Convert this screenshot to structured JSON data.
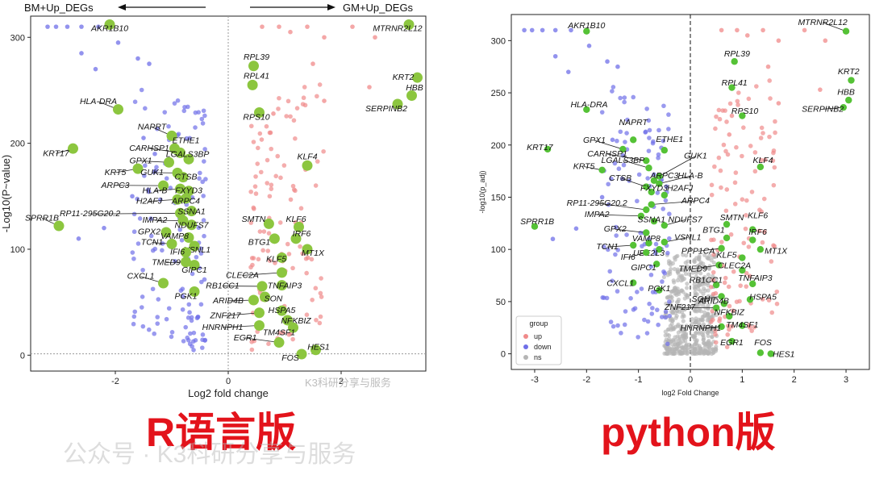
{
  "captions": {
    "left": "R语言版",
    "right": "python版"
  },
  "watermarks": {
    "small": "K3科研分享与服务",
    "big": "公众号 · K3科研分享与服务"
  },
  "chart_data": [
    {
      "type": "scatter",
      "panel": "left",
      "title": "",
      "header_left": "BM+Up_DEGs",
      "header_right": "GM+Up_DEGs",
      "xlabel": "Log2 fold change",
      "ylabel": "-Log10(P~value)",
      "xlim": [
        -3.5,
        3.5
      ],
      "ylim": [
        -15,
        320
      ],
      "xticks": [
        -2,
        0,
        2
      ],
      "yticks": [
        0,
        100,
        200,
        300
      ],
      "grid": false,
      "colors": {
        "up": "#f08a8a",
        "down": "#6f6fe8",
        "highlight": "#8cc63f"
      },
      "labels": [
        {
          "g": "AKR1B10",
          "x": -2.1,
          "y": 312,
          "lx": -2.1,
          "ly": 306
        },
        {
          "g": "MTRNR2L12",
          "x": 3.2,
          "y": 312,
          "lx": 3.0,
          "ly": 306
        },
        {
          "g": "RPL39",
          "x": 0.45,
          "y": 273,
          "lx": 0.5,
          "ly": 279
        },
        {
          "g": "RPL41",
          "x": 0.43,
          "y": 255,
          "lx": 0.5,
          "ly": 261
        },
        {
          "g": "KRT2",
          "x": 3.35,
          "y": 262,
          "lx": 3.1,
          "ly": 260
        },
        {
          "g": "HBB",
          "x": 3.25,
          "y": 245,
          "lx": 3.3,
          "ly": 250
        },
        {
          "g": "SERPINB2",
          "x": 3.0,
          "y": 237,
          "lx": 2.8,
          "ly": 230
        },
        {
          "g": "HLA-DRA",
          "x": -1.95,
          "y": 232,
          "lx": -2.3,
          "ly": 237
        },
        {
          "g": "RPS10",
          "x": 0.55,
          "y": 229,
          "lx": 0.5,
          "ly": 222
        },
        {
          "g": "NAPRT",
          "x": -1.0,
          "y": 207,
          "lx": -1.35,
          "ly": 213
        },
        {
          "g": "ETHE1",
          "x": -0.95,
          "y": 195,
          "lx": -0.75,
          "ly": 200
        },
        {
          "g": "KRT17",
          "x": -2.75,
          "y": 195,
          "lx": -3.05,
          "ly": 188
        },
        {
          "g": "CARHSP1",
          "x": -0.85,
          "y": 191,
          "lx": -1.4,
          "ly": 193
        },
        {
          "g": "LGALS3BP",
          "x": -0.7,
          "y": 185,
          "lx": -0.72,
          "ly": 187
        },
        {
          "g": "GPX1",
          "x": -1.05,
          "y": 182,
          "lx": -1.55,
          "ly": 181
        },
        {
          "g": "KLF4",
          "x": 1.4,
          "y": 179,
          "lx": 1.4,
          "ly": 185
        },
        {
          "g": "KRT5",
          "x": -1.6,
          "y": 176,
          "lx": -2.0,
          "ly": 170
        },
        {
          "g": "GUK1",
          "x": -0.9,
          "y": 172,
          "lx": -1.35,
          "ly": 170
        },
        {
          "g": "CTSB",
          "x": -0.8,
          "y": 168,
          "lx": -0.75,
          "ly": 166
        },
        {
          "g": "ARPC3",
          "x": -1.15,
          "y": 160,
          "lx": -2.0,
          "ly": 158
        },
        {
          "g": "HLA-B",
          "x": -0.85,
          "y": 157,
          "lx": -1.3,
          "ly": 153
        },
        {
          "g": "FXYD3",
          "x": -0.7,
          "y": 155,
          "lx": -0.7,
          "ly": 153
        },
        {
          "g": "H2AFJ",
          "x": -0.9,
          "y": 147,
          "lx": -1.4,
          "ly": 143
        },
        {
          "g": "ARPC4",
          "x": -0.75,
          "y": 148,
          "lx": -0.75,
          "ly": 143
        },
        {
          "g": "RP11-295G20.2",
          "x": -0.85,
          "y": 134,
          "lx": -2.45,
          "ly": 131
        },
        {
          "g": "SSNA1",
          "x": -0.65,
          "y": 136,
          "lx": -0.65,
          "ly": 133
        },
        {
          "g": "IMPA2",
          "x": -0.8,
          "y": 127,
          "lx": -1.3,
          "ly": 125
        },
        {
          "g": "NDUFS7",
          "x": -0.65,
          "y": 123,
          "lx": -0.65,
          "ly": 120
        },
        {
          "g": "SMTN",
          "x": 0.72,
          "y": 124,
          "lx": 0.45,
          "ly": 126
        },
        {
          "g": "KLF6",
          "x": 1.25,
          "y": 121,
          "lx": 1.2,
          "ly": 126
        },
        {
          "g": "GPX2",
          "x": -1.1,
          "y": 116,
          "lx": -1.4,
          "ly": 114
        },
        {
          "g": "IRF6",
          "x": 1.2,
          "y": 110,
          "lx": 1.3,
          "ly": 112
        },
        {
          "g": "BTG1",
          "x": 0.82,
          "y": 110,
          "lx": 0.55,
          "ly": 104
        },
        {
          "g": "VAMP8",
          "x": -0.7,
          "y": 111,
          "lx": -0.95,
          "ly": 110
        },
        {
          "g": "TCN1",
          "x": -1.0,
          "y": 105,
          "lx": -1.35,
          "ly": 104
        },
        {
          "g": "VSNL1",
          "x": -0.6,
          "y": 103,
          "lx": -0.55,
          "ly": 97
        },
        {
          "g": "IFI6",
          "x": -0.75,
          "y": 97,
          "lx": -0.9,
          "ly": 95
        },
        {
          "g": "MT1X",
          "x": 1.4,
          "y": 100,
          "lx": 1.5,
          "ly": 94
        },
        {
          "g": "KLF5",
          "x": 0.95,
          "y": 92,
          "lx": 0.85,
          "ly": 88
        },
        {
          "g": "TMED9",
          "x": -0.75,
          "y": 88,
          "lx": -1.1,
          "ly": 85
        },
        {
          "g": "GIPC1",
          "x": -0.6,
          "y": 85,
          "lx": -0.6,
          "ly": 78
        },
        {
          "g": "CLEC2A",
          "x": 0.95,
          "y": 78,
          "lx": 0.25,
          "ly": 73
        },
        {
          "g": "CXCL1",
          "x": -1.15,
          "y": 68,
          "lx": -1.55,
          "ly": 72
        },
        {
          "g": "RB1CC1",
          "x": 0.6,
          "y": 65,
          "lx": -0.1,
          "ly": 63
        },
        {
          "g": "TNFAIP3",
          "x": 0.95,
          "y": 66,
          "lx": 1.0,
          "ly": 63
        },
        {
          "g": "PGK1",
          "x": -0.6,
          "y": 60,
          "lx": -0.75,
          "ly": 53
        },
        {
          "g": "SON",
          "x": 0.65,
          "y": 55,
          "lx": 0.8,
          "ly": 51
        },
        {
          "g": "ARID4B",
          "x": 0.45,
          "y": 52,
          "lx": 0.0,
          "ly": 49
        },
        {
          "g": "HSPA5",
          "x": 0.95,
          "y": 42,
          "lx": 0.95,
          "ly": 40
        },
        {
          "g": "ZNF217",
          "x": 0.55,
          "y": 40,
          "lx": -0.05,
          "ly": 35
        },
        {
          "g": "NFKBIZ",
          "x": 1.05,
          "y": 33,
          "lx": 1.2,
          "ly": 30
        },
        {
          "g": "HNRNPH1",
          "x": 0.55,
          "y": 28,
          "lx": -0.1,
          "ly": 24
        },
        {
          "g": "TM4SF1",
          "x": 1.15,
          "y": 26,
          "lx": 0.9,
          "ly": 19
        },
        {
          "g": "EGR1",
          "x": 0.9,
          "y": 12,
          "lx": 0.3,
          "ly": 14
        },
        {
          "g": "HES1",
          "x": 1.55,
          "y": 5,
          "lx": 1.6,
          "ly": 5
        },
        {
          "g": "FOS",
          "x": 1.3,
          "y": 1,
          "lx": 1.1,
          "ly": -5
        },
        {
          "g": "SPRR1B",
          "x": -3.0,
          "y": 122,
          "lx": -3.3,
          "ly": 127
        }
      ]
    },
    {
      "type": "scatter",
      "panel": "right",
      "title": "",
      "xlabel": "log2 Fold Change",
      "ylabel": "-log10(p_adj)",
      "xlim": [
        -3.45,
        3.45
      ],
      "ylim": [
        -15,
        325
      ],
      "xticks": [
        -3,
        -2,
        -1,
        0,
        1,
        2,
        3
      ],
      "yticks": [
        0,
        50,
        100,
        150,
        200,
        250,
        300
      ],
      "grid": false,
      "legend": {
        "title": "group",
        "position": "bottom-left",
        "entries": [
          {
            "name": "up",
            "color": "#f08a8a"
          },
          {
            "name": "down",
            "color": "#6f6fe8"
          },
          {
            "name": "ns",
            "color": "#b5b5b5"
          }
        ]
      },
      "colors": {
        "up": "#f08a8a",
        "down": "#6f6fe8",
        "ns": "#b5b5b5",
        "highlight": "#55c236"
      },
      "labels": [
        {
          "g": "AKR1B10",
          "x": -2.0,
          "y": 309,
          "lx": -2.0,
          "ly": 312
        },
        {
          "g": "MTRNR2L12",
          "x": 3.0,
          "y": 309,
          "lx": 2.55,
          "ly": 315
        },
        {
          "g": "RPL39",
          "x": 0.85,
          "y": 280,
          "lx": 0.9,
          "ly": 285
        },
        {
          "g": "KRT2",
          "x": 3.1,
          "y": 262,
          "lx": 3.05,
          "ly": 268
        },
        {
          "g": "RPL41",
          "x": 0.8,
          "y": 255,
          "lx": 0.85,
          "ly": 257
        },
        {
          "g": "HBB",
          "x": 3.05,
          "y": 243,
          "lx": 3.0,
          "ly": 248
        },
        {
          "g": "SERPINB2",
          "x": 2.95,
          "y": 236,
          "lx": 2.55,
          "ly": 232
        },
        {
          "g": "HLA-DRA",
          "x": -2.0,
          "y": 234,
          "lx": -1.95,
          "ly": 236
        },
        {
          "g": "RPS10",
          "x": 1.0,
          "y": 228,
          "lx": 1.05,
          "ly": 230
        },
        {
          "g": "NAPRT",
          "x": -1.1,
          "y": 205,
          "lx": -1.1,
          "ly": 219
        },
        {
          "g": "GPX1",
          "x": -1.3,
          "y": 196,
          "lx": -1.85,
          "ly": 202
        },
        {
          "g": "ETHE1",
          "x": -0.5,
          "y": 195,
          "lx": -0.4,
          "ly": 203
        },
        {
          "g": "KRT17",
          "x": -2.75,
          "y": 196,
          "lx": -2.9,
          "ly": 195
        },
        {
          "g": "CARHSP1",
          "x": -0.85,
          "y": 185,
          "lx": -1.6,
          "ly": 189
        },
        {
          "g": "LGALS3BP",
          "x": -0.8,
          "y": 178,
          "lx": -1.3,
          "ly": 183
        },
        {
          "g": "GUK1",
          "x": -0.6,
          "y": 170,
          "lx": 0.1,
          "ly": 187
        },
        {
          "g": "KLF4",
          "x": 1.35,
          "y": 179,
          "lx": 1.4,
          "ly": 183
        },
        {
          "g": "KRT5",
          "x": -1.7,
          "y": 176,
          "lx": -2.05,
          "ly": 177
        },
        {
          "g": "ARPC3",
          "x": -0.7,
          "y": 166,
          "lx": -0.5,
          "ly": 168
        },
        {
          "g": "HLA-B",
          "x": -0.6,
          "y": 163,
          "lx": 0.0,
          "ly": 168
        },
        {
          "g": "CTSB",
          "x": -0.85,
          "y": 160,
          "lx": -1.35,
          "ly": 166
        },
        {
          "g": "FXYD3",
          "x": -0.75,
          "y": 155,
          "lx": -0.7,
          "ly": 156
        },
        {
          "g": "H2AFJ",
          "x": -0.5,
          "y": 152,
          "lx": -0.2,
          "ly": 156
        },
        {
          "g": "ARPC4",
          "x": -0.75,
          "y": 143,
          "lx": 0.1,
          "ly": 144
        },
        {
          "g": "RP11-295G20.2",
          "x": -0.85,
          "y": 138,
          "lx": -1.8,
          "ly": 142
        },
        {
          "g": "IMPA2",
          "x": -0.95,
          "y": 132,
          "lx": -1.8,
          "ly": 131
        },
        {
          "g": "SSNA1",
          "x": -0.7,
          "y": 127,
          "lx": -0.75,
          "ly": 126
        },
        {
          "g": "NDUFS7",
          "x": -0.5,
          "y": 123,
          "lx": -0.1,
          "ly": 126
        },
        {
          "g": "SMTN",
          "x": 0.7,
          "y": 124,
          "lx": 0.8,
          "ly": 128
        },
        {
          "g": "KLF6",
          "x": 1.2,
          "y": 119,
          "lx": 1.3,
          "ly": 130
        },
        {
          "g": "SPRR1B",
          "x": -3.0,
          "y": 122,
          "lx": -2.95,
          "ly": 124
        },
        {
          "g": "GPX2",
          "x": -0.85,
          "y": 116,
          "lx": -1.45,
          "ly": 117
        },
        {
          "g": "BTG1",
          "x": 0.7,
          "y": 111,
          "lx": 0.45,
          "ly": 116
        },
        {
          "g": "IRF6",
          "x": 1.2,
          "y": 109,
          "lx": 1.3,
          "ly": 114
        },
        {
          "g": "VSNL1",
          "x": -0.5,
          "y": 107,
          "lx": -0.05,
          "ly": 109
        },
        {
          "g": "VAMP8",
          "x": -0.8,
          "y": 106,
          "lx": -0.85,
          "ly": 108
        },
        {
          "g": "TCN1",
          "x": -1.1,
          "y": 104,
          "lx": -1.6,
          "ly": 100
        },
        {
          "g": "UBE2L3",
          "x": -0.6,
          "y": 100,
          "lx": -0.8,
          "ly": 94
        },
        {
          "g": "PPP1CA",
          "x": 0.6,
          "y": 101,
          "lx": 0.15,
          "ly": 96
        },
        {
          "g": "MT1X",
          "x": 1.35,
          "y": 100,
          "lx": 1.65,
          "ly": 96
        },
        {
          "g": "IFI6",
          "x": -0.85,
          "y": 97,
          "lx": -1.2,
          "ly": 90
        },
        {
          "g": "KLF5",
          "x": 1.0,
          "y": 92,
          "lx": 0.7,
          "ly": 92
        },
        {
          "g": "GIPC1",
          "x": -0.65,
          "y": 86,
          "lx": -0.9,
          "ly": 80
        },
        {
          "g": "TMED9",
          "x": 0.55,
          "y": 85,
          "lx": 0.05,
          "ly": 79
        },
        {
          "g": "CLEC2A",
          "x": 1.0,
          "y": 80,
          "lx": 0.85,
          "ly": 82
        },
        {
          "g": "CXCL1",
          "x": -1.1,
          "y": 68,
          "lx": -1.35,
          "ly": 65
        },
        {
          "g": "RB1CC1",
          "x": 0.5,
          "y": 66,
          "lx": 0.3,
          "ly": 68
        },
        {
          "g": "TNFAIP3",
          "x": 1.2,
          "y": 67,
          "lx": 1.25,
          "ly": 70
        },
        {
          "g": "PGK1",
          "x": -0.6,
          "y": 61,
          "lx": -0.6,
          "ly": 60
        },
        {
          "g": "SON",
          "x": 0.6,
          "y": 55,
          "lx": 0.2,
          "ly": 50
        },
        {
          "g": "HSPA5",
          "x": 1.15,
          "y": 52,
          "lx": 1.4,
          "ly": 52
        },
        {
          "g": "ARID4B",
          "x": 0.65,
          "y": 48,
          "lx": 0.45,
          "ly": 48
        },
        {
          "g": "ZNF217",
          "x": 0.5,
          "y": 44,
          "lx": -0.2,
          "ly": 42
        },
        {
          "g": "NFKBIZ",
          "x": 0.75,
          "y": 36,
          "lx": 0.75,
          "ly": 37
        },
        {
          "g": "TM4SF1",
          "x": 1.0,
          "y": 27,
          "lx": 1.0,
          "ly": 25
        },
        {
          "g": "HNRNPH1",
          "x": 0.6,
          "y": 26,
          "lx": 0.2,
          "ly": 22
        },
        {
          "g": "EGR1",
          "x": 0.8,
          "y": 12,
          "lx": 0.8,
          "ly": 8
        },
        {
          "g": "FOS",
          "x": 1.35,
          "y": 1,
          "lx": 1.4,
          "ly": 8
        },
        {
          "g": "HES1",
          "x": 1.55,
          "y": 0,
          "lx": 1.8,
          "ly": -3
        }
      ]
    }
  ]
}
